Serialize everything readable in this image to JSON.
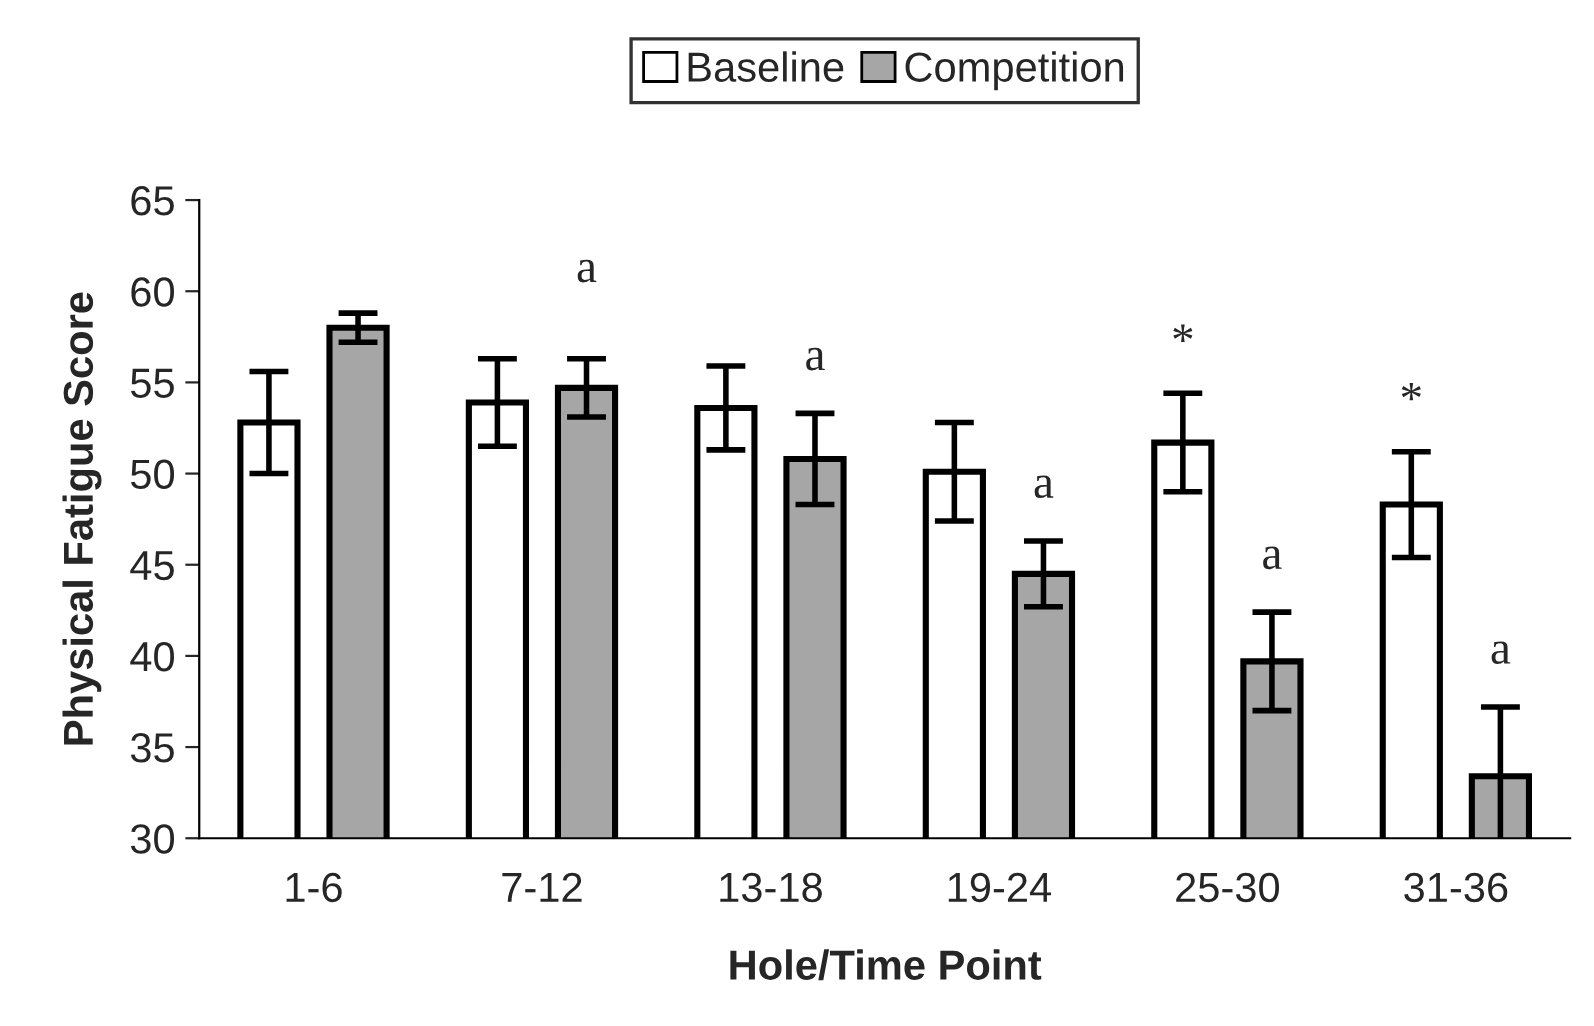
{
  "chart_data": {
    "type": "bar",
    "xlabel": "Hole/Time Point",
    "ylabel": "Physical Fatigue Score",
    "categories": [
      "1-6",
      "7-12",
      "13-18",
      "19-24",
      "25-30",
      "31-36"
    ],
    "series": [
      {
        "name": "Baseline",
        "color": "#ffffff",
        "values": [
          52.8,
          53.9,
          53.6,
          50.1,
          51.7,
          48.3
        ],
        "errors": [
          2.8,
          2.4,
          2.3,
          2.7,
          2.7,
          2.9
        ]
      },
      {
        "name": "Competition",
        "color": "#a6a6a6",
        "values": [
          58.0,
          54.7,
          50.8,
          44.5,
          39.7,
          33.4
        ],
        "errors": [
          0.8,
          1.6,
          2.5,
          1.8,
          2.7,
          3.8
        ]
      }
    ],
    "ylim": [
      30,
      65
    ],
    "yticks": [
      30,
      35,
      40,
      45,
      50,
      55,
      60,
      65
    ],
    "grid": false,
    "legend": "top",
    "annotations": [
      "a",
      "a",
      "a",
      "a",
      "a",
      "*",
      "*"
    ]
  }
}
